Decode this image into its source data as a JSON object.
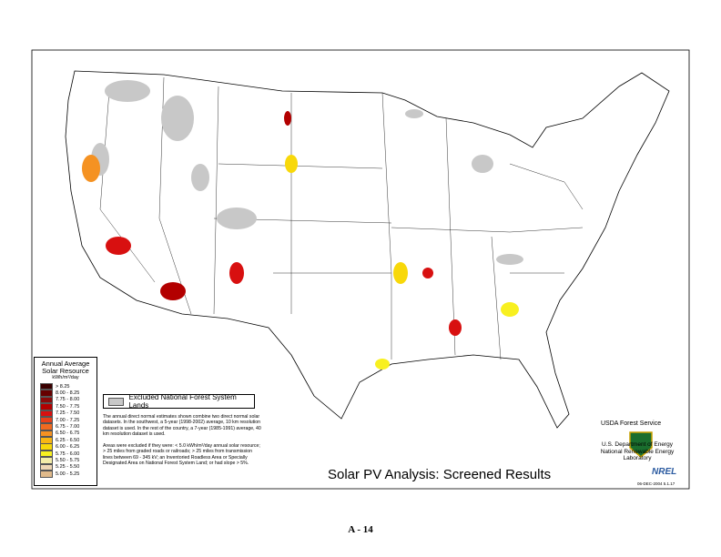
{
  "legend": {
    "title": "Annual Average Solar Resource",
    "unit": "kWh/m²/day",
    "entries": [
      {
        "label": "> 8.25",
        "color": "#3a0000"
      },
      {
        "label": "8.00 - 8.25",
        "color": "#660000"
      },
      {
        "label": "7.75 - 8.00",
        "color": "#8a0a0a"
      },
      {
        "label": "7.50 - 7.75",
        "color": "#b30000"
      },
      {
        "label": "7.25 - 7.50",
        "color": "#d81010"
      },
      {
        "label": "7.00 - 7.25",
        "color": "#e8401a"
      },
      {
        "label": "6.75 - 7.00",
        "color": "#f06a20"
      },
      {
        "label": "6.50 - 6.75",
        "color": "#f59222"
      },
      {
        "label": "6.25 - 6.50",
        "color": "#f8b614"
      },
      {
        "label": "6.00 - 6.25",
        "color": "#f8d80a"
      },
      {
        "label": "5.75 - 6.00",
        "color": "#f8f020"
      },
      {
        "label": "5.50 - 5.75",
        "color": "#f3eca8"
      },
      {
        "label": "5.25 - 5.50",
        "color": "#eed6b4"
      },
      {
        "label": "5.00 - 5.25",
        "color": "#dfb98a"
      }
    ]
  },
  "excluded": "Excluded National Forest System Lands",
  "notes": [
    "The annual direct normal estimates shown combine two direct normal solar datasets. In the southwest, a 5-year (1998-2002) average, 10 km resolution dataset is used. In the rest of the country, a 7-year (1985-1991) average, 40 km resolution dataset is used.",
    "Areas were excluded if they were: < 5.0 kWh/m²/day annual solar resource; > 25 miles from graded roads or railroads; > 25 miles from transmission lines between 69 - 345 kV; an Inventoried Roadless Area or Specially Designated Area on National Forest System Land; or had slope > 5%."
  ],
  "title": "Solar PV Analysis:  Screened Results",
  "usda": "USDA Forest Service",
  "doe": "U.S. Department of Energy National Renewable Energy Laboratory",
  "nrel": "NREL",
  "date": "06-DEC-2004 5.1.17",
  "page": "A - 14"
}
